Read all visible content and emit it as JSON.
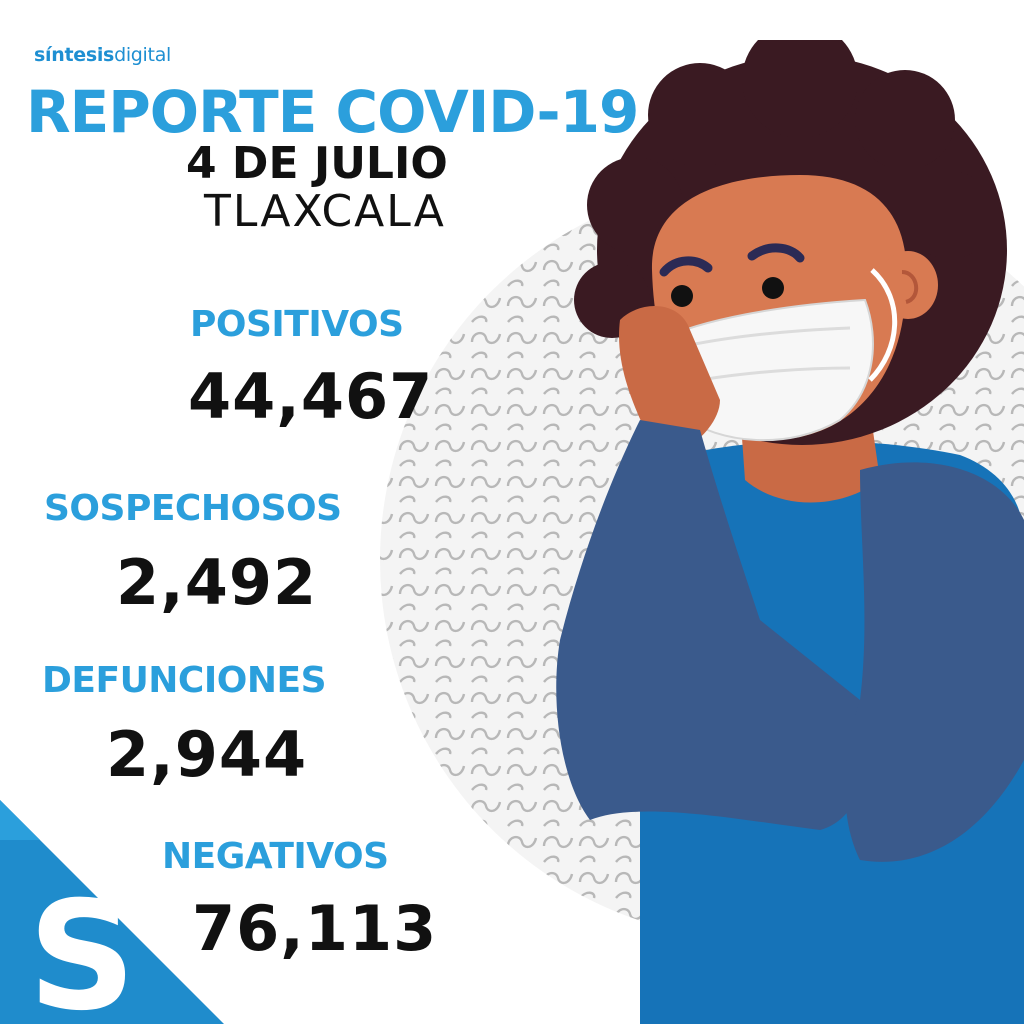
{
  "brand": {
    "bold": "síntesis",
    "light": "digital"
  },
  "title": "REPORTE COVID-19",
  "date": "4 DE JULIO",
  "place": "TLAXCALA",
  "stats": [
    {
      "label": "POSITIVOS",
      "value": "44,467"
    },
    {
      "label": "SOSPECHOSOS",
      "value": "2,492"
    },
    {
      "label": "DEFUNCIONES",
      "value": "2,944"
    },
    {
      "label": "NEGATIVOS",
      "value": "76,113"
    }
  ],
  "corner_logo": {
    "letter": "S"
  },
  "colors": {
    "accent": "#2b9fdc",
    "text": "#111111",
    "shirt": "#1673b8",
    "sleeve": "#3a5a8c",
    "hair": "#3a1a22",
    "skin": "#d87a52"
  }
}
